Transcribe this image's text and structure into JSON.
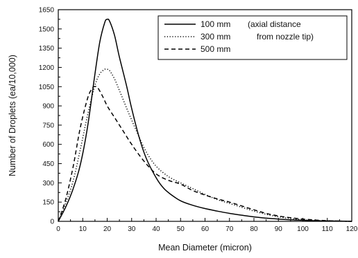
{
  "chart_data": {
    "type": "line",
    "xlabel": "Mean Diameter (micron)",
    "ylabel": "Number of Droplets (ea/10,000)",
    "xlim": [
      0,
      120
    ],
    "ylim": [
      0,
      1650
    ],
    "x_ticks": [
      0,
      10,
      20,
      30,
      40,
      50,
      60,
      70,
      80,
      90,
      100,
      110,
      120
    ],
    "y_ticks": [
      0,
      150,
      300,
      450,
      600,
      750,
      900,
      1050,
      1200,
      1350,
      1500,
      1650
    ],
    "grid": false,
    "legend": {
      "placement": "top-right",
      "note_line1": "(axial distance",
      "note_line2": "from nozzle tip)"
    },
    "series": [
      {
        "name": "100 mm",
        "style": "solid",
        "x": [
          0,
          3,
          6,
          9,
          12,
          15,
          17,
          19,
          20,
          21,
          23,
          25,
          28,
          30,
          33,
          36,
          40,
          43,
          46,
          50,
          55,
          60,
          65,
          70,
          75,
          80,
          85,
          90,
          95,
          100,
          105,
          110,
          115,
          120
        ],
        "y": [
          0,
          110,
          250,
          440,
          740,
          1150,
          1400,
          1550,
          1575,
          1560,
          1450,
          1280,
          1050,
          880,
          660,
          490,
          340,
          260,
          210,
          160,
          125,
          100,
          80,
          62,
          48,
          35,
          25,
          18,
          12,
          8,
          5,
          3,
          2,
          0
        ]
      },
      {
        "name": "300 mm",
        "style": "dotted",
        "x": [
          0,
          3,
          6,
          9,
          12,
          15,
          17,
          19,
          20,
          21,
          23,
          25,
          28,
          30,
          33,
          36,
          40,
          45,
          50,
          55,
          60,
          65,
          70,
          75,
          80,
          85,
          90,
          95,
          100,
          105,
          110,
          115,
          120
        ],
        "y": [
          0,
          140,
          310,
          560,
          830,
          1060,
          1150,
          1185,
          1185,
          1175,
          1110,
          1020,
          880,
          790,
          660,
          540,
          430,
          350,
          300,
          255,
          210,
          170,
          140,
          110,
          80,
          55,
          35,
          22,
          12,
          7,
          4,
          2,
          0
        ]
      },
      {
        "name": "500 mm",
        "style": "dashed",
        "x": [
          0,
          3,
          6,
          9,
          12,
          14,
          15,
          16,
          18,
          20,
          23,
          26,
          30,
          35,
          40,
          45,
          50,
          55,
          60,
          65,
          70,
          75,
          80,
          85,
          90,
          95,
          100,
          105,
          110,
          115,
          120
        ],
        "y": [
          0,
          170,
          420,
          730,
          960,
          1040,
          1050,
          1045,
          980,
          900,
          810,
          720,
          600,
          470,
          370,
          320,
          290,
          240,
          205,
          175,
          150,
          120,
          90,
          62,
          42,
          28,
          18,
          10,
          5,
          2,
          0
        ]
      }
    ]
  }
}
